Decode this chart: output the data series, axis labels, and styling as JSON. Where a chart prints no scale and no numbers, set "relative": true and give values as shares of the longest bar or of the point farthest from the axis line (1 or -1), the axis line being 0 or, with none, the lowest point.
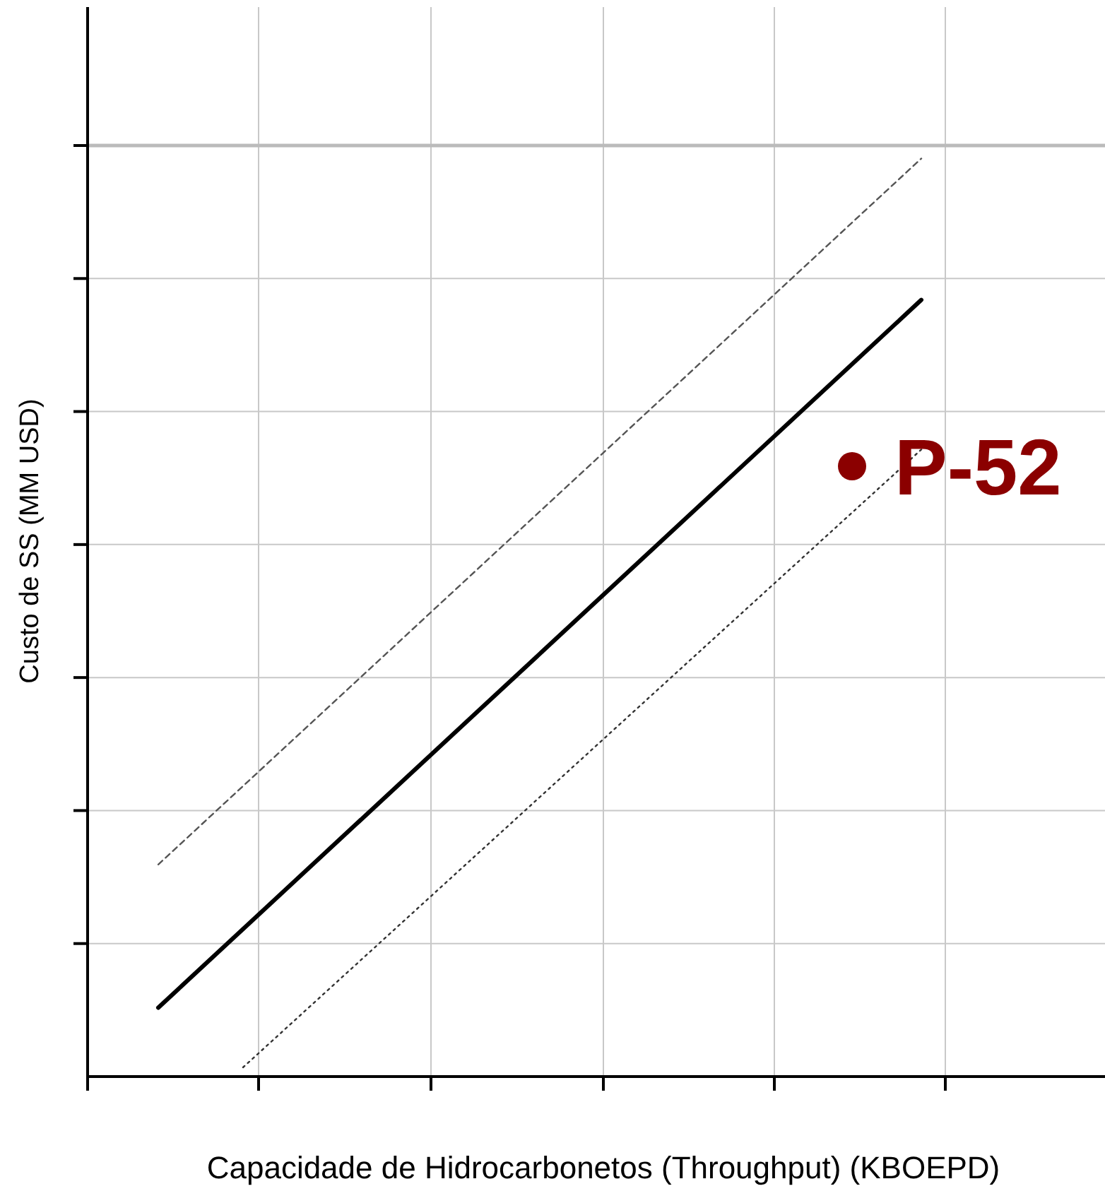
{
  "chart_data": {
    "type": "line",
    "relative": true,
    "xlabel": "Capacidade de Hidrocarbonetos (Throughput) (KBOEPD)",
    "ylabel": "Custo de SS (MM USD)",
    "grid": true,
    "marker": "none",
    "categories": [
      null,
      null,
      null,
      null,
      null,
      null,
      null,
      null,
      null,
      null,
      null,
      null,
      null,
      null,
      null,
      null,
      null,
      null,
      null,
      null,
      null,
      null,
      null,
      null,
      null,
      null,
      null,
      null,
      null,
      null,
      null,
      null,
      null,
      null,
      null,
      null
    ],
    "annotations": [
      "P-52"
    ],
    "series": [
      {
        "color": "#000000",
        "line_style": "solid",
        "values": [
          null,
          null,
          0.075,
          null,
          null,
          null,
          null,
          null,
          null,
          null,
          null,
          null,
          null,
          null,
          null,
          null,
          null,
          null,
          null,
          null,
          null,
          null,
          null,
          null,
          null,
          null,
          null,
          null,
          null,
          0.846,
          null,
          null,
          null,
          null,
          null,
          null
        ]
      },
      {
        "color": "#555555",
        "line_style": "dashed",
        "values": [
          null,
          null,
          0.231,
          null,
          null,
          null,
          null,
          null,
          null,
          null,
          null,
          null,
          null,
          null,
          null,
          null,
          null,
          null,
          null,
          null,
          null,
          null,
          null,
          null,
          null,
          null,
          null,
          null,
          null,
          1,
          null,
          null,
          null,
          null,
          null,
          null
        ]
      },
      {
        "color": "#333333",
        "line_style": "dotted",
        "values": [
          null,
          null,
          null,
          null,
          null,
          0.01,
          null,
          null,
          null,
          null,
          null,
          null,
          null,
          null,
          null,
          null,
          null,
          null,
          null,
          null,
          null,
          null,
          null,
          null,
          null,
          null,
          null,
          null,
          null,
          0.683,
          null,
          null,
          null,
          null,
          null,
          null
        ]
      }
    ]
  }
}
